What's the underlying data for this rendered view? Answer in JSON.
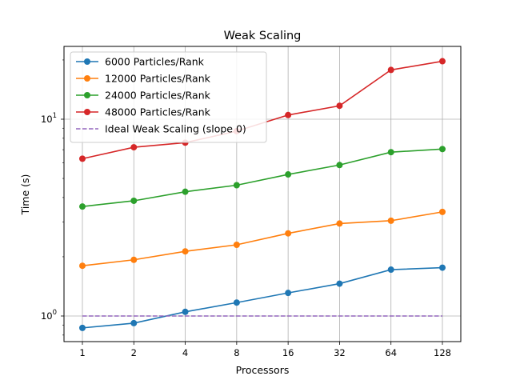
{
  "chart_data": {
    "type": "line",
    "title": "Weak Scaling",
    "xlabel": "Processors",
    "ylabel": "Time (s)",
    "x_scale": "log2",
    "y_scale": "log10",
    "x_ticks": [
      "1",
      "2",
      "4",
      "8",
      "16",
      "32",
      "64",
      "128"
    ],
    "y_ticks": [
      {
        "label": "10",
        "exp": "0",
        "value": 1
      },
      {
        "label": "10",
        "exp": "1",
        "value": 10
      }
    ],
    "grid": true,
    "legend_position": "top-left",
    "x": [
      1,
      2,
      4,
      8,
      16,
      32,
      64,
      128
    ],
    "series": [
      {
        "name": "6000 Particles/Rank",
        "color": "#1f77b4",
        "style": "solid-marker",
        "values": [
          0.87,
          0.92,
          1.05,
          1.17,
          1.31,
          1.46,
          1.72,
          1.76
        ]
      },
      {
        "name": "12000 Particles/Rank",
        "color": "#ff7f0e",
        "style": "solid-marker",
        "values": [
          1.8,
          1.93,
          2.13,
          2.3,
          2.63,
          2.95,
          3.05,
          3.38
        ]
      },
      {
        "name": "24000 Particles/Rank",
        "color": "#2ca02c",
        "style": "solid-marker",
        "values": [
          3.6,
          3.85,
          4.28,
          4.62,
          5.24,
          5.85,
          6.8,
          7.05
        ]
      },
      {
        "name": "48000 Particles/Rank",
        "color": "#d62728",
        "style": "solid-marker",
        "values": [
          6.3,
          7.2,
          7.6,
          8.7,
          10.5,
          11.7,
          17.8,
          19.7
        ]
      },
      {
        "name": "Ideal Weak Scaling (slope 0)",
        "color": "#9467bd",
        "style": "dashed",
        "values": [
          1,
          1,
          1,
          1,
          1,
          1,
          1,
          1
        ]
      }
    ]
  }
}
